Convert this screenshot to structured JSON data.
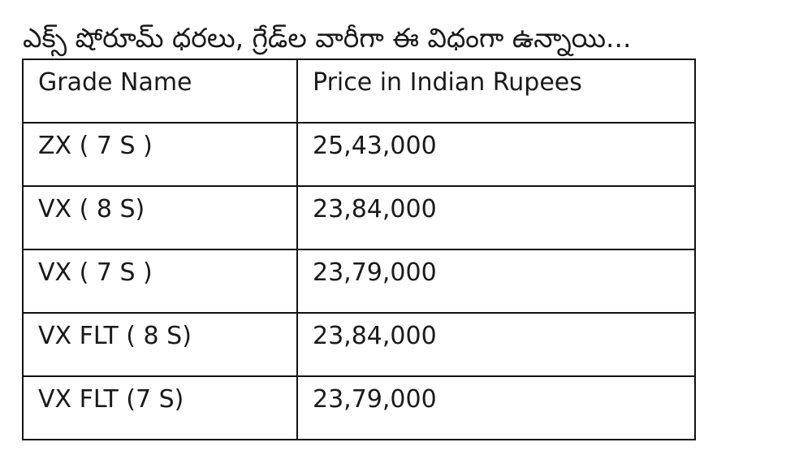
{
  "heading": "ఎక్స్ షోరూమ్ ధరలు, గ్రేడ్‌ల వారీగా ఈ విధంగా ఉన్నాయి...",
  "table": {
    "headers": [
      "Grade Name",
      "Price in Indian Rupees"
    ],
    "rows": [
      [
        "ZX ( 7 S )",
        "25,43,000"
      ],
      [
        "VX ( 8 S)",
        "23,84,000"
      ],
      [
        "VX ( 7 S )",
        "23,79,000"
      ],
      [
        "VX FLT ( 8 S)",
        "23,84,000"
      ],
      [
        "VX FLT (7 S)",
        "23,79,000"
      ]
    ]
  }
}
